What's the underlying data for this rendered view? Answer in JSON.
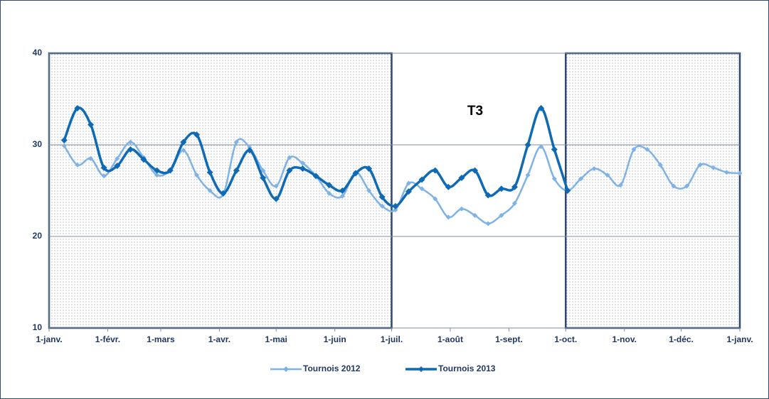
{
  "chart_data": {
    "type": "line",
    "annotation": "T3",
    "x": [
      8,
      15,
      22,
      29,
      36,
      43,
      50,
      57,
      64,
      71,
      78,
      85,
      92,
      99,
      106,
      113,
      120,
      127,
      134,
      141,
      148,
      155,
      162,
      169,
      176,
      183,
      190,
      197,
      204,
      211,
      218,
      225,
      232,
      239,
      246,
      253,
      260,
      267,
      274,
      281,
      288,
      295,
      302,
      309,
      316,
      323,
      330,
      337,
      344,
      351,
      358,
      365
    ],
    "series": [
      {
        "name": "Tournois 2012",
        "color": "#7fb2e5",
        "values": [
          29.9,
          27.8,
          28.5,
          26.6,
          28.5,
          30.3,
          28.6,
          26.7,
          27.2,
          29.4,
          26.7,
          25.0,
          24.6,
          30.3,
          29.7,
          27.2,
          25.5,
          28.6,
          28.0,
          26.6,
          24.7,
          24.4,
          27.0,
          25.0,
          23.3,
          22.9,
          25.8,
          25.2,
          24.1,
          22.1,
          23.0,
          22.3,
          21.4,
          22.3,
          23.6,
          26.7,
          29.8,
          26.3,
          25.0,
          26.3,
          27.4,
          26.7,
          25.6,
          29.5,
          29.5,
          27.8,
          25.5,
          25.5,
          27.8,
          27.5,
          27.0,
          26.9
        ]
      },
      {
        "name": "Tournois 2013",
        "color": "#0f6ab4",
        "values": [
          30.5,
          34.0,
          32.2,
          27.5,
          27.7,
          29.5,
          28.4,
          27.2,
          27.2,
          30.3,
          31.1,
          27.0,
          24.7,
          27.2,
          29.4,
          26.4,
          24.1,
          27.2,
          27.4,
          26.6,
          25.6,
          25.0,
          26.9,
          27.4,
          24.3,
          23.3,
          24.9,
          26.2,
          27.2,
          25.4,
          26.4,
          27.2,
          24.5,
          25.2,
          25.4,
          30.0,
          34.0,
          29.5,
          25.0,
          null,
          null,
          null,
          null,
          null,
          null,
          null,
          null,
          null,
          null,
          null,
          null,
          null
        ]
      }
    ],
    "xlim": [
      0,
      365
    ],
    "xticks": [
      {
        "value": 0,
        "label": "1-janv."
      },
      {
        "value": 31,
        "label": "1-févr."
      },
      {
        "value": 59,
        "label": "1-mars"
      },
      {
        "value": 90,
        "label": "1-avr."
      },
      {
        "value": 120,
        "label": "1-mai"
      },
      {
        "value": 151,
        "label": "1-juin"
      },
      {
        "value": 181,
        "label": "1-juil."
      },
      {
        "value": 212,
        "label": "1-août"
      },
      {
        "value": 243,
        "label": "1-sept."
      },
      {
        "value": 273,
        "label": "1-oct."
      },
      {
        "value": 304,
        "label": "1-nov."
      },
      {
        "value": 334,
        "label": "1-déc."
      },
      {
        "value": 365,
        "label": "1-janv."
      }
    ],
    "ylim": [
      10,
      40
    ],
    "yticks": [
      10,
      20,
      30,
      40
    ],
    "grid": true,
    "shaded_x_ranges": [
      [
        0,
        181
      ],
      [
        273,
        365
      ]
    ],
    "legend": "bottom"
  }
}
